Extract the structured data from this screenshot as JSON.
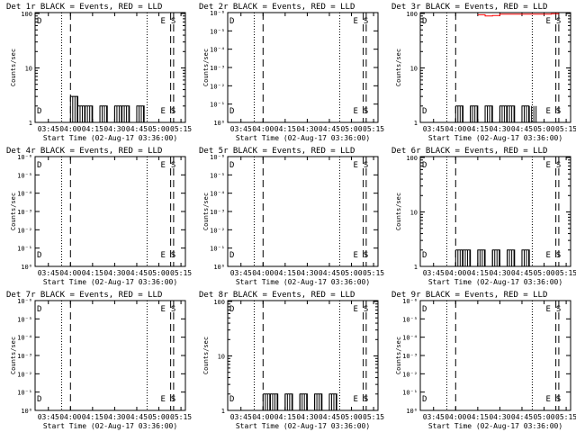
{
  "figure": {
    "panel_titles_note": "",
    "xlabel_common": "Start Time (02-Aug-17 03:36:00)"
  },
  "panels": [
    {
      "title": "Det 1r BLACK = Events, RED = LLD",
      "ylabel": "Counts/sec",
      "xlabel": "Start Time (02-Aug-17 03:36:00)",
      "x_tick_labels": [
        "03:45",
        "04:00",
        "04:15",
        "04:30",
        "04:45",
        "05:00",
        "05:15"
      ],
      "y_tick_labels": [
        "1",
        "10",
        "100"
      ],
      "y_log_range": [
        1,
        100
      ],
      "markers": [
        "D",
        "E",
        "S"
      ]
    },
    {
      "title": "Det 2r BLACK = Events, RED = LLD",
      "ylabel": "Counts/sec",
      "xlabel": "Start Time (02-Aug-17 03:36:00)",
      "x_tick_labels": [
        "03:45",
        "04:00",
        "04:15",
        "04:30",
        "04:45",
        "05:00",
        "05:15"
      ],
      "y_tick_labels": [
        "10⁰",
        "10⁻¹",
        "10⁻²",
        "10⁻³",
        "10⁻⁴",
        "10⁻⁵",
        "10⁻⁶"
      ],
      "markers": [
        "D",
        "E",
        "S"
      ]
    },
    {
      "title": "Det 3r BLACK = Events, RED = LLD",
      "ylabel": "Counts/sec",
      "xlabel": "Start Time (02-Aug-17 03:36:00)",
      "x_tick_labels": [
        "03:45",
        "04:00",
        "04:15",
        "04:30",
        "04:45",
        "05:00",
        "05:15"
      ],
      "y_tick_labels": [
        "1",
        "10",
        "100"
      ],
      "markers": [
        "D",
        "E",
        "S"
      ]
    },
    {
      "title": "Det 4r BLACK = Events, RED = LLD",
      "ylabel": "Counts/sec",
      "xlabel": "Start Time (02-Aug-17 03:36:00)",
      "x_tick_labels": [
        "03:45",
        "04:00",
        "04:15",
        "04:30",
        "04:45",
        "05:00",
        "05:15"
      ],
      "y_tick_labels": [
        "10⁰",
        "10⁻¹",
        "10⁻²",
        "10⁻³",
        "10⁻⁴",
        "10⁻⁵",
        "10⁻⁶"
      ],
      "markers": [
        "D",
        "E",
        "S"
      ]
    },
    {
      "title": "Det 5r BLACK = Events, RED = LLD",
      "ylabel": "Counts/sec",
      "xlabel": "Start Time (02-Aug-17 03:36:00)",
      "x_tick_labels": [
        "03:45",
        "04:00",
        "04:15",
        "04:30",
        "04:45",
        "05:00",
        "05:15"
      ],
      "y_tick_labels": [
        "10⁰",
        "10⁻¹",
        "10⁻²",
        "10⁻³",
        "10⁻⁴",
        "10⁻⁵",
        "10⁻⁶"
      ],
      "markers": [
        "D",
        "E",
        "S"
      ]
    },
    {
      "title": "Det 6r BLACK = Events, RED = LLD",
      "ylabel": "Counts/sec",
      "xlabel": "Start Time (02-Aug-17 03:36:00)",
      "x_tick_labels": [
        "03:45",
        "04:00",
        "04:15",
        "04:30",
        "04:45",
        "05:00",
        "05:15"
      ],
      "y_tick_labels": [
        "1",
        "10",
        "100"
      ],
      "markers": [
        "D",
        "E",
        "S"
      ]
    },
    {
      "title": "Det 7r BLACK = Events, RED = LLD",
      "ylabel": "Counts/sec",
      "xlabel": "Start Time (02-Aug-17 03:36:00)",
      "x_tick_labels": [
        "03:45",
        "04:00",
        "04:15",
        "04:30",
        "04:45",
        "05:00",
        "05:15"
      ],
      "y_tick_labels": [
        "10⁰",
        "10⁻¹",
        "10⁻²",
        "10⁻³",
        "10⁻⁴",
        "10⁻⁵",
        "10⁻⁶"
      ],
      "markers": [
        "D",
        "E",
        "S"
      ]
    },
    {
      "title": "Det 8r BLACK = Events, RED = LLD",
      "ylabel": "Counts/sec",
      "xlabel": "Start Time (02-Aug-17 03:36:00)",
      "x_tick_labels": [
        "03:45",
        "04:00",
        "04:15",
        "04:30",
        "04:45",
        "05:00",
        "05:15"
      ],
      "y_tick_labels": [
        "1",
        "10",
        "100"
      ],
      "markers": [
        "D",
        "E",
        "S"
      ]
    },
    {
      "title": "Det 9r BLACK = Events, RED = LLD",
      "ylabel": "Counts/sec",
      "xlabel": "Start Time (02-Aug-17 03:36:00)",
      "x_tick_labels": [
        "03:45",
        "04:00",
        "04:15",
        "04:30",
        "04:45",
        "05:00",
        "05:15"
      ],
      "y_tick_labels": [
        "10⁰",
        "10⁻¹",
        "10⁻²",
        "10⁻³",
        "10⁻⁴",
        "10⁻⁵",
        "10⁻⁶"
      ],
      "markers": [
        "D",
        "E",
        "S"
      ]
    }
  ],
  "colors": {
    "events": "#000000",
    "lld": "#ff0000",
    "background": "#ffffff"
  },
  "chart_data": [
    {
      "type": "line",
      "title": "Det 1r BLACK = Events, RED = LLD",
      "xlabel": "Start Time (02-Aug-17 03:36:00)",
      "ylabel": "Counts/sec",
      "y_scale": "log",
      "ylim": [
        1,
        100
      ],
      "series": [
        {
          "name": "Events",
          "color": "#000000",
          "x": [
            "04:00",
            "04:05",
            "04:10",
            "04:15",
            "04:20",
            "04:25",
            "04:30",
            "04:35",
            "04:40",
            "04:45",
            "04:50"
          ],
          "values": [
            3,
            2,
            2,
            1,
            2,
            1,
            2,
            2,
            1,
            2,
            1
          ]
        }
      ]
    },
    {
      "type": "line",
      "title": "Det 2r BLACK = Events, RED = LLD",
      "xlabel": "Start Time (02-Aug-17 03:36:00)",
      "ylabel": "Counts/sec",
      "y_scale": "log",
      "series": []
    },
    {
      "type": "line",
      "title": "Det 3r BLACK = Events, RED = LLD",
      "xlabel": "Start Time (02-Aug-17 03:36:00)",
      "ylabel": "Counts/sec",
      "y_scale": "log",
      "ylim": [
        1,
        100
      ],
      "series": [
        {
          "name": "Events",
          "color": "#000000",
          "x": [
            "04:00",
            "04:05",
            "04:10",
            "04:15",
            "04:20",
            "04:25",
            "04:30",
            "04:35",
            "04:40",
            "04:45",
            "04:50"
          ],
          "values": [
            2,
            1,
            2,
            1,
            2,
            1,
            2,
            2,
            1,
            2,
            2
          ]
        },
        {
          "name": "LLD",
          "color": "#ff0000",
          "x": [
            "04:15",
            "04:20",
            "04:25",
            "04:30",
            "05:05",
            "05:10"
          ],
          "values": [
            95,
            90,
            92,
            97,
            99,
            100
          ]
        }
      ]
    },
    {
      "type": "line",
      "title": "Det 4r BLACK = Events, RED = LLD",
      "xlabel": "Start Time (02-Aug-17 03:36:00)",
      "ylabel": "Counts/sec",
      "y_scale": "log",
      "series": []
    },
    {
      "type": "line",
      "title": "Det 5r BLACK = Events, RED = LLD",
      "xlabel": "Start Time (02-Aug-17 03:36:00)",
      "ylabel": "Counts/sec",
      "y_scale": "log",
      "series": []
    },
    {
      "type": "line",
      "title": "Det 6r BLACK = Events, RED = LLD",
      "xlabel": "Start Time (02-Aug-17 03:36:00)",
      "ylabel": "Counts/sec",
      "y_scale": "log",
      "ylim": [
        1,
        100
      ],
      "series": [
        {
          "name": "Events",
          "color": "#000000",
          "x": [
            "04:00",
            "04:05",
            "04:10",
            "04:15",
            "04:20",
            "04:25",
            "04:30",
            "04:35",
            "04:40",
            "04:45",
            "04:50"
          ],
          "values": [
            2,
            2,
            1,
            2,
            1,
            2,
            1,
            2,
            1,
            2,
            1
          ]
        }
      ]
    },
    {
      "type": "line",
      "title": "Det 7r BLACK = Events, RED = LLD",
      "xlabel": "Start Time (02-Aug-17 03:36:00)",
      "ylabel": "Counts/sec",
      "y_scale": "log",
      "series": []
    },
    {
      "type": "line",
      "title": "Det 8r BLACK = Events, RED = LLD",
      "xlabel": "Start Time (02-Aug-17 03:36:00)",
      "ylabel": "Counts/sec",
      "y_scale": "log",
      "ylim": [
        1,
        100
      ],
      "series": [
        {
          "name": "Events",
          "color": "#000000",
          "x": [
            "04:00",
            "04:05",
            "04:10",
            "04:15",
            "04:20",
            "04:25",
            "04:30",
            "04:35",
            "04:40",
            "04:45",
            "04:50"
          ],
          "values": [
            2,
            2,
            1,
            2,
            1,
            2,
            1,
            2,
            1,
            2,
            1
          ]
        }
      ]
    },
    {
      "type": "line",
      "title": "Det 9r BLACK = Events, RED = LLD",
      "xlabel": "Start Time (02-Aug-17 03:36:00)",
      "ylabel": "Counts/sec",
      "y_scale": "log",
      "series": []
    }
  ]
}
